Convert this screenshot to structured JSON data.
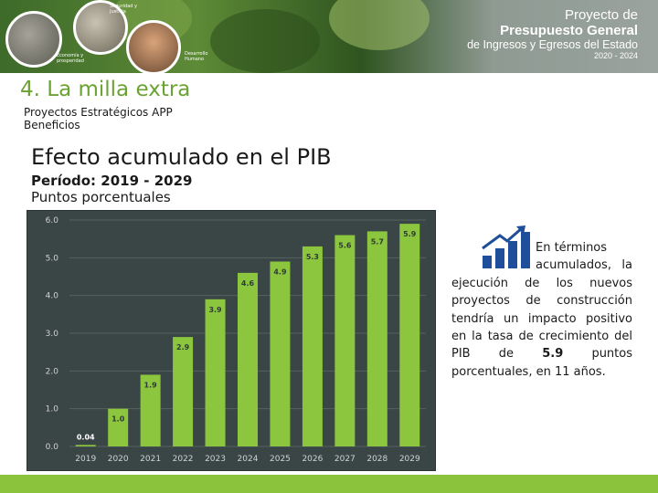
{
  "header": {
    "circle_labels": [
      "Seguridad y\nJusticia",
      "Economía y\nprosperidad",
      "Desarrollo\nHumano"
    ],
    "logo_lines": [
      "Proyecto de",
      "Presupuesto General",
      "de Ingresos y Egresos del Estado",
      "2020 - 2024"
    ]
  },
  "section_title": "4. La milla extra",
  "subtitle_1": "Proyectos Estratégicos APP",
  "subtitle_2": "Beneficios",
  "chart_heading": "Efecto acumulado en el PIB",
  "period_label": "Período: 2019 - 2029",
  "units_label": "Puntos porcentuales",
  "chart_data": {
    "type": "bar",
    "categories": [
      "2019",
      "2020",
      "2021",
      "2022",
      "2023",
      "2024",
      "2025",
      "2026",
      "2027",
      "2028",
      "2029"
    ],
    "values": [
      0.04,
      1.0,
      1.9,
      2.9,
      3.9,
      4.6,
      4.9,
      5.3,
      5.6,
      5.7,
      5.9
    ],
    "value_labels": [
      "0.04",
      "1.0",
      "1.9",
      "2.9",
      "3.9",
      "4.6",
      "4.9",
      "5.3",
      "5.6",
      "5.7",
      "5.9"
    ],
    "y_ticks": [
      "0.0",
      "1.0",
      "2.0",
      "3.0",
      "4.0",
      "5.0",
      "6.0"
    ],
    "ylim": [
      0,
      6
    ],
    "title": "",
    "xlabel": "",
    "ylabel": "",
    "grid": true,
    "colors": {
      "bar": "#8cc63f",
      "background": "#3a4545",
      "grid": "#55625f",
      "value_label": "#2f3a36",
      "first_value_label": "#ffffff",
      "tick_label": "#d0d4d2"
    }
  },
  "note": {
    "line_1": "En términos",
    "line_2": "acumulados, la",
    "line_3": "ejecución de los nuevos",
    "line_4": "proyectos de construcción",
    "line_5": "tendría un impacto positivo",
    "line_6": "en la tasa de crecimiento del",
    "line_7_a": "PIB",
    "line_7_b": "de",
    "line_7_value": "5.9",
    "line_7_c": "puntos",
    "line_8": "porcentuales, en 11 años."
  },
  "icons": {
    "growth": "bar-chart-growth-icon"
  }
}
